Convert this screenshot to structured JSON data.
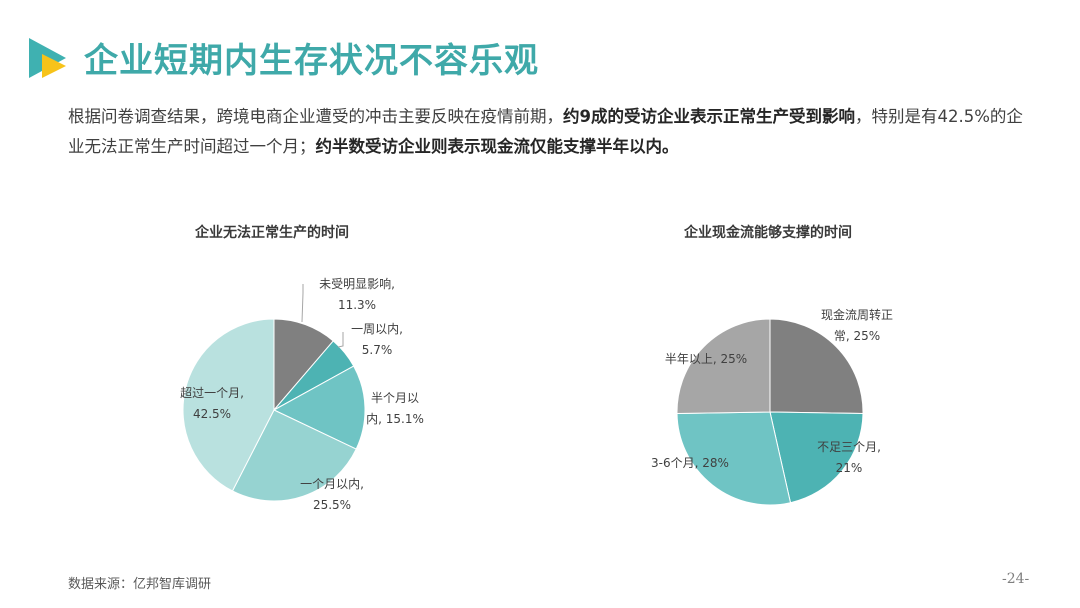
{
  "header": {
    "title": "企业短期内生存状况不容乐观"
  },
  "summary": {
    "seg1": "根据问卷调查结果，跨境电商企业遭受的冲击主要反映在疫情前期，",
    "seg2_bold": "约9成的受访企业表示正常生产受到影响",
    "seg3": "，特别是有42.5%的企业无法正常生产时间超过一个月；",
    "seg4_bold": "约半数受访企业则表示现金流仅能支撑半年以内。"
  },
  "colors": {
    "title": "#3fa9a9",
    "logo_teal": "#3fb1b1",
    "logo_yellow": "#f7c31a"
  },
  "chart_data": [
    {
      "type": "pie",
      "title": "企业无法正常生产的时间",
      "slices": [
        {
          "label_lines": [
            "未受明显影响,",
            "11.3%"
          ],
          "value": 11.3,
          "color": "#808080"
        },
        {
          "label_lines": [
            "一周以内,",
            "5.7%"
          ],
          "value": 5.7,
          "color": "#4db3b3"
        },
        {
          "label_lines": [
            "半个月以",
            "内, 15.1%"
          ],
          "value": 15.1,
          "color": "#6fc4c4"
        },
        {
          "label_lines": [
            "一个月以内,",
            "25.5%"
          ],
          "value": 25.5,
          "color": "#96d3d1"
        },
        {
          "label_lines": [
            "超过一个月,",
            "42.5%"
          ],
          "value": 42.5,
          "color": "#b9e1df"
        }
      ]
    },
    {
      "type": "pie",
      "title": "企业现金流能够支撑的时间",
      "slices": [
        {
          "label_lines": [
            "现金流周转正",
            "常, 25%"
          ],
          "value": 25,
          "color": "#808080"
        },
        {
          "label_lines": [
            "不足三个月,",
            "21%"
          ],
          "value": 21,
          "color": "#4db3b3"
        },
        {
          "label_lines": [
            "3-6个月, 28%"
          ],
          "value": 28,
          "color": "#6fc4c4"
        },
        {
          "label_lines": [
            "半年以上, 25%"
          ],
          "value": 25,
          "color": "#a6a6a6"
        }
      ]
    }
  ],
  "footer": {
    "source": "数据来源：亿邦智库调研",
    "page": "-24-"
  }
}
